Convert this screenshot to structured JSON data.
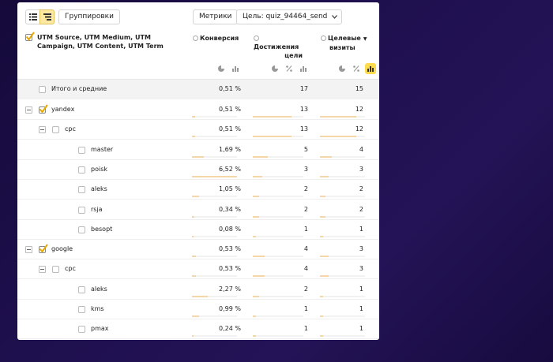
{
  "toolbar": {
    "groupings_label": "Группировки",
    "metrics_label": "Метрики",
    "goal_label": "Цель: quiz_94464_send"
  },
  "header": {
    "dimension_title": "UTM Source, UTM Medium, UTM Campaign, UTM Content, UTM Term",
    "columns": [
      {
        "line1": "Конверсия",
        "line2": ""
      },
      {
        "line1": "Достижения",
        "line2": "цели"
      },
      {
        "line1": "Целевые",
        "line2": "визиты"
      }
    ]
  },
  "total": {
    "label": "Итого и средние",
    "conv": "0,51 %",
    "reach": "17",
    "visits": "15"
  },
  "rows": [
    {
      "label": "yandex",
      "level": 0,
      "toggle": true,
      "checked": true,
      "conv": "0,51 %",
      "reach": "13",
      "visits": "12",
      "conv_pct": 0.51,
      "reach_frac": 0.76,
      "visits_frac": 0.8
    },
    {
      "label": "cpc",
      "level": 1,
      "toggle": true,
      "checked": false,
      "conv": "0,51 %",
      "reach": "13",
      "visits": "12",
      "conv_pct": 0.51,
      "reach_frac": 0.76,
      "visits_frac": 0.8
    },
    {
      "label": "master",
      "level": 2,
      "toggle": false,
      "checked": false,
      "conv": "1,69 %",
      "reach": "5",
      "visits": "4",
      "conv_pct": 1.69,
      "reach_frac": 0.29,
      "visits_frac": 0.27
    },
    {
      "label": "poisk",
      "level": 2,
      "toggle": false,
      "checked": false,
      "conv": "6,52 %",
      "reach": "3",
      "visits": "3",
      "conv_pct": 6.52,
      "reach_frac": 0.18,
      "visits_frac": 0.2
    },
    {
      "label": "aleks",
      "level": 2,
      "toggle": false,
      "checked": false,
      "conv": "1,05 %",
      "reach": "2",
      "visits": "2",
      "conv_pct": 1.05,
      "reach_frac": 0.12,
      "visits_frac": 0.13
    },
    {
      "label": "rsja",
      "level": 2,
      "toggle": false,
      "checked": false,
      "conv": "0,34 %",
      "reach": "2",
      "visits": "2",
      "conv_pct": 0.34,
      "reach_frac": 0.12,
      "visits_frac": 0.13
    },
    {
      "label": "besopt",
      "level": 2,
      "toggle": false,
      "checked": false,
      "conv": "0,08 %",
      "reach": "1",
      "visits": "1",
      "conv_pct": 0.08,
      "reach_frac": 0.06,
      "visits_frac": 0.07
    },
    {
      "label": "google",
      "level": 0,
      "toggle": true,
      "checked": true,
      "conv": "0,53 %",
      "reach": "4",
      "visits": "3",
      "conv_pct": 0.53,
      "reach_frac": 0.24,
      "visits_frac": 0.2
    },
    {
      "label": "cpc",
      "level": 1,
      "toggle": true,
      "checked": false,
      "conv": "0,53 %",
      "reach": "4",
      "visits": "3",
      "conv_pct": 0.53,
      "reach_frac": 0.24,
      "visits_frac": 0.2
    },
    {
      "label": "aleks",
      "level": 2,
      "toggle": false,
      "checked": false,
      "conv": "2,27 %",
      "reach": "2",
      "visits": "1",
      "conv_pct": 2.27,
      "reach_frac": 0.12,
      "visits_frac": 0.07
    },
    {
      "label": "kms",
      "level": 2,
      "toggle": false,
      "checked": false,
      "conv": "0,99 %",
      "reach": "1",
      "visits": "1",
      "conv_pct": 0.99,
      "reach_frac": 0.06,
      "visits_frac": 0.07
    },
    {
      "label": "pmax",
      "level": 2,
      "toggle": false,
      "checked": false,
      "conv": "0,24 %",
      "reach": "1",
      "visits": "1",
      "conv_pct": 0.24,
      "reach_frac": 0.06,
      "visits_frac": 0.07
    }
  ],
  "colors": {
    "accent": "#ffdb4d",
    "bar": "#f5d6a8",
    "check": "#e6a800"
  }
}
